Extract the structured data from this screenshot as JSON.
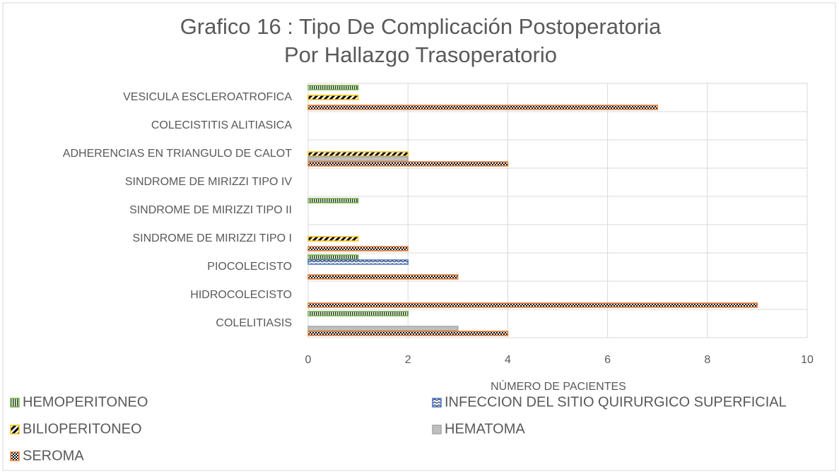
{
  "chart_data": {
    "type": "barh",
    "title": "Grafico 16 : Tipo De Complicación Postoperatoria Por Hallazgo Trasoperatorio",
    "x_label": "NÚMERO DE PACIENTES",
    "categories": [
      "VESICULA ESCLEROATROFICA",
      "COLECISTITIS ALITIASICA",
      "ADHERENCIAS EN TRIANGULO DE CALOT",
      "SINDROME DE MIRIZZI TIPO IV",
      "SINDROME DE MIRIZZI TIPO II",
      "SINDROME DE MIRIZZI TIPO I",
      "PIOCOLECISTO",
      "HIDROCOLECISTO",
      "COLELITIASIS"
    ],
    "series": [
      {
        "name": "HEMOPERITONEO",
        "color": "#70ad47",
        "values": [
          1,
          0,
          0,
          0,
          1,
          0,
          1,
          0,
          2
        ]
      },
      {
        "name": "INFECCION DEL SITIO QUIRURGICO SUPERFICIAL",
        "color": "#4472c4",
        "values": [
          0,
          0,
          0,
          0,
          0,
          0,
          2,
          0,
          0
        ]
      },
      {
        "name": "BILIOPERITONEO",
        "color": "#ffc000",
        "values": [
          1,
          0,
          2,
          0,
          0,
          1,
          0,
          0,
          0
        ]
      },
      {
        "name": "HEMATOMA",
        "color": "#a5a5a5",
        "values": [
          0,
          0,
          2,
          0,
          0,
          0,
          0,
          0,
          3
        ]
      },
      {
        "name": "SEROMA",
        "color": "#ed7d31",
        "values": [
          7,
          0,
          4,
          0,
          0,
          2,
          3,
          9,
          4
        ]
      }
    ],
    "xlim": [
      0,
      10
    ],
    "xticks": [
      0,
      2,
      4,
      6,
      8,
      10
    ],
    "grid": true,
    "legend": "bottom"
  }
}
